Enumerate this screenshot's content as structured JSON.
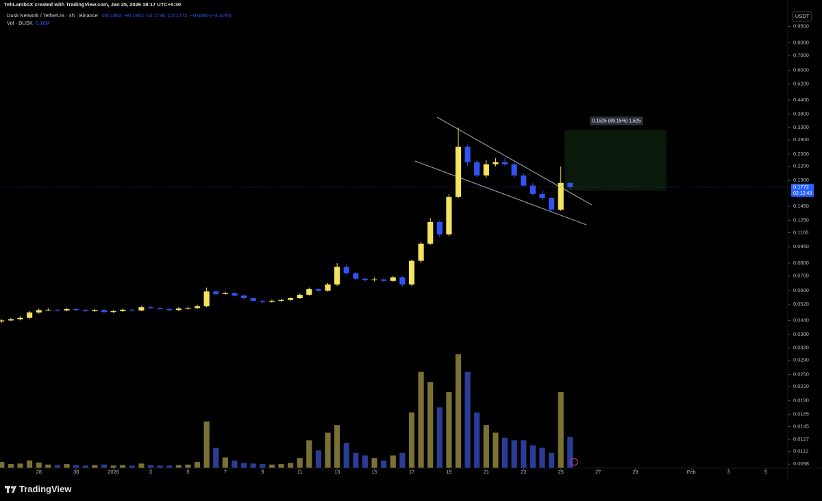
{
  "header": {
    "author_line": "TehLamboX created with TradingView.com, Jan 25, 2026 19:17 UTC+5:30",
    "ohlc": [
      "O0.1852",
      "H0.1852",
      "L0.1736",
      "C0.1772",
      "−0.0080 (−4.32%)"
    ]
  },
  "footer": {
    "brand": "TradingView"
  },
  "annotations": {
    "measure": "0.1525 (89.15%) 1,525",
    "countdown": "02:12:43"
  },
  "chart_data": {
    "type": "candlestick",
    "title": "Dusk Network / TetherUS · 4h · Binance",
    "currency": "USDT",
    "log_scale": true,
    "grid": false,
    "up_color": "#f3e35f",
    "down_color": "#3153f0",
    "volume_up_color": "#7a7234",
    "volume_down_color": "#2a3c96",
    "xlim": [
      -1.9,
      40.1
    ],
    "xticks": [
      {
        "value": 0,
        "label": "28"
      },
      {
        "value": 2,
        "label": "30"
      },
      {
        "value": 4,
        "label": "2026"
      },
      {
        "value": 6,
        "label": "3"
      },
      {
        "value": 8,
        "label": "5"
      },
      {
        "value": 10,
        "label": "7"
      },
      {
        "value": 12,
        "label": "9"
      },
      {
        "value": 14,
        "label": "11"
      },
      {
        "value": 16,
        "label": "13"
      },
      {
        "value": 18,
        "label": "15"
      },
      {
        "value": 20,
        "label": "17"
      },
      {
        "value": 22,
        "label": "19"
      },
      {
        "value": 24,
        "label": "21"
      },
      {
        "value": 26,
        "label": "23"
      },
      {
        "value": 28,
        "label": "25"
      },
      {
        "value": 30,
        "label": "27"
      },
      {
        "value": 32,
        "label": "29"
      },
      {
        "value": 35,
        "label": "Feb"
      },
      {
        "value": 37,
        "label": "3"
      },
      {
        "value": 39,
        "label": "5"
      }
    ],
    "ylim": [
      0.0094,
      1.1
    ],
    "yticks": [
      {
        "value": 0.95,
        "label": "0.9500"
      },
      {
        "value": 0.8,
        "label": "0.8000"
      },
      {
        "value": 0.7,
        "label": "0.7000"
      },
      {
        "value": 0.6,
        "label": "0.6000"
      },
      {
        "value": 0.52,
        "label": "0.5200"
      },
      {
        "value": 0.44,
        "label": "0.4400"
      },
      {
        "value": 0.38,
        "label": "0.3800"
      },
      {
        "value": 0.33,
        "label": "0.3300"
      },
      {
        "value": 0.29,
        "label": "0.2900"
      },
      {
        "value": 0.25,
        "label": "0.2500"
      },
      {
        "value": 0.22,
        "label": "0.2200"
      },
      {
        "value": 0.19,
        "label": "0.1900"
      },
      {
        "value": 0.145,
        "label": "0.1450"
      },
      {
        "value": 0.125,
        "label": "0.1250"
      },
      {
        "value": 0.11,
        "label": "0.1100"
      },
      {
        "value": 0.095,
        "label": "0.0950"
      },
      {
        "value": 0.08,
        "label": "0.0800"
      },
      {
        "value": 0.07,
        "label": "0.0700"
      },
      {
        "value": 0.06,
        "label": "0.0600"
      },
      {
        "value": 0.052,
        "label": "0.0520"
      },
      {
        "value": 0.044,
        "label": "0.0440"
      },
      {
        "value": 0.038,
        "label": "0.0380"
      },
      {
        "value": 0.033,
        "label": "0.0330"
      },
      {
        "value": 0.029,
        "label": "0.0290"
      },
      {
        "value": 0.025,
        "label": "0.0250"
      },
      {
        "value": 0.022,
        "label": "0.0220"
      },
      {
        "value": 0.019,
        "label": "0.0190"
      },
      {
        "value": 0.0165,
        "label": "0.0165"
      },
      {
        "value": 0.0145,
        "label": "0.0145"
      },
      {
        "value": 0.0127,
        "label": "0.0127"
      },
      {
        "value": 0.0112,
        "label": "0.0112"
      },
      {
        "value": 0.0098,
        "label": "0.0098"
      }
    ],
    "last_price": 0.1772,
    "x": [
      -2.0,
      -1.5,
      -1.0,
      -0.5,
      0.0,
      0.5,
      1.0,
      1.5,
      2.0,
      2.5,
      3.0,
      3.5,
      4.0,
      4.5,
      5.0,
      5.5,
      6.0,
      6.5,
      7.0,
      7.5,
      8.0,
      8.5,
      9.0,
      9.5,
      10.0,
      10.5,
      11.0,
      11.5,
      12.0,
      12.5,
      13.0,
      13.5,
      14.0,
      14.5,
      15.0,
      15.5,
      16.0,
      16.5,
      17.0,
      17.5,
      18.0,
      18.5,
      19.0,
      19.5,
      20.0,
      20.5,
      21.0,
      21.5,
      22.0,
      22.5,
      23.0,
      23.5,
      24.0,
      24.5,
      25.0,
      25.5,
      26.0,
      26.5,
      27.0,
      27.5,
      28.0,
      28.5
    ],
    "open": [
      0.0435,
      0.044,
      0.0445,
      0.0452,
      0.0478,
      0.049,
      0.0492,
      0.0488,
      0.0495,
      0.049,
      0.0485,
      0.049,
      0.048,
      0.0485,
      0.0492,
      0.0488,
      0.0505,
      0.05,
      0.0495,
      0.049,
      0.0498,
      0.05,
      0.051,
      0.0595,
      0.058,
      0.0585,
      0.057,
      0.0555,
      0.054,
      0.0535,
      0.054,
      0.0545,
      0.0555,
      0.0575,
      0.061,
      0.06,
      0.064,
      0.077,
      0.072,
      0.068,
      0.067,
      0.0675,
      0.0665,
      0.069,
      0.064,
      0.082,
      0.098,
      0.123,
      0.108,
      0.16,
      0.27,
      0.23,
      0.2,
      0.225,
      0.23,
      0.225,
      0.2,
      0.18,
      0.165,
      0.158,
      0.14,
      0.1852
    ],
    "high": [
      0.0445,
      0.0452,
      0.046,
      0.0485,
      0.0498,
      0.05,
      0.0498,
      0.0502,
      0.05,
      0.0495,
      0.0495,
      0.0495,
      0.049,
      0.0498,
      0.0498,
      0.0512,
      0.051,
      0.0505,
      0.0498,
      0.0505,
      0.0508,
      0.0518,
      0.062,
      0.0605,
      0.0595,
      0.059,
      0.0575,
      0.056,
      0.0545,
      0.0548,
      0.0552,
      0.056,
      0.0582,
      0.062,
      0.062,
      0.065,
      0.08,
      0.079,
      0.073,
      0.069,
      0.069,
      0.0685,
      0.07,
      0.07,
      0.083,
      0.1,
      0.128,
      0.125,
      0.165,
      0.33,
      0.275,
      0.235,
      0.235,
      0.24,
      0.24,
      0.23,
      0.205,
      0.185,
      0.17,
      0.16,
      0.22,
      0.1852
    ],
    "low": [
      0.043,
      0.0436,
      0.044,
      0.0448,
      0.0472,
      0.0485,
      0.0482,
      0.0484,
      0.0485,
      0.048,
      0.048,
      0.0475,
      0.0476,
      0.048,
      0.0482,
      0.0485,
      0.0495,
      0.049,
      0.0484,
      0.0486,
      0.0492,
      0.0496,
      0.0505,
      0.057,
      0.0575,
      0.0565,
      0.055,
      0.0535,
      0.0528,
      0.053,
      0.0535,
      0.054,
      0.055,
      0.057,
      0.059,
      0.0595,
      0.063,
      0.071,
      0.067,
      0.066,
      0.0662,
      0.0655,
      0.066,
      0.0625,
      0.063,
      0.08,
      0.097,
      0.105,
      0.106,
      0.158,
      0.22,
      0.195,
      0.195,
      0.22,
      0.22,
      0.195,
      0.178,
      0.162,
      0.155,
      0.137,
      0.138,
      0.1736
    ],
    "close": [
      0.044,
      0.0445,
      0.0452,
      0.0478,
      0.049,
      0.0492,
      0.0488,
      0.0495,
      0.049,
      0.0485,
      0.049,
      0.048,
      0.0485,
      0.0492,
      0.0488,
      0.0505,
      0.05,
      0.0495,
      0.049,
      0.0498,
      0.05,
      0.051,
      0.0595,
      0.058,
      0.0585,
      0.057,
      0.0555,
      0.054,
      0.0535,
      0.054,
      0.0545,
      0.0555,
      0.0575,
      0.061,
      0.06,
      0.064,
      0.077,
      0.072,
      0.068,
      0.067,
      0.0675,
      0.0665,
      0.069,
      0.064,
      0.082,
      0.098,
      0.123,
      0.108,
      0.16,
      0.27,
      0.23,
      0.2,
      0.225,
      0.23,
      0.225,
      0.2,
      0.18,
      0.165,
      0.158,
      0.14,
      0.1852,
      0.1772
    ],
    "volume": {
      "name": "Vol · DUSK",
      "axis": "y2",
      "current_label": "6.16M",
      "values": [
        1.2,
        0.8,
        0.9,
        1.5,
        1.1,
        0.7,
        0.6,
        0.8,
        0.6,
        0.5,
        0.6,
        0.7,
        0.5,
        0.6,
        0.5,
        0.9,
        0.6,
        0.5,
        0.5,
        0.6,
        0.7,
        1.2,
        9.2,
        4.0,
        2.1,
        1.5,
        1.0,
        0.9,
        0.8,
        0.7,
        0.8,
        1.0,
        2.0,
        5.5,
        3.5,
        7.0,
        8.5,
        5.0,
        3.0,
        2.5,
        2.0,
        1.5,
        2.5,
        3.0,
        11.0,
        19.0,
        17.0,
        12.0,
        15.0,
        22.5,
        19.0,
        11.0,
        8.5,
        7.0,
        6.0,
        5.5,
        5.5,
        4.5,
        4.0,
        3.0,
        15.0,
        6.16
      ]
    },
    "y2lim": [
      0,
      90
    ]
  }
}
